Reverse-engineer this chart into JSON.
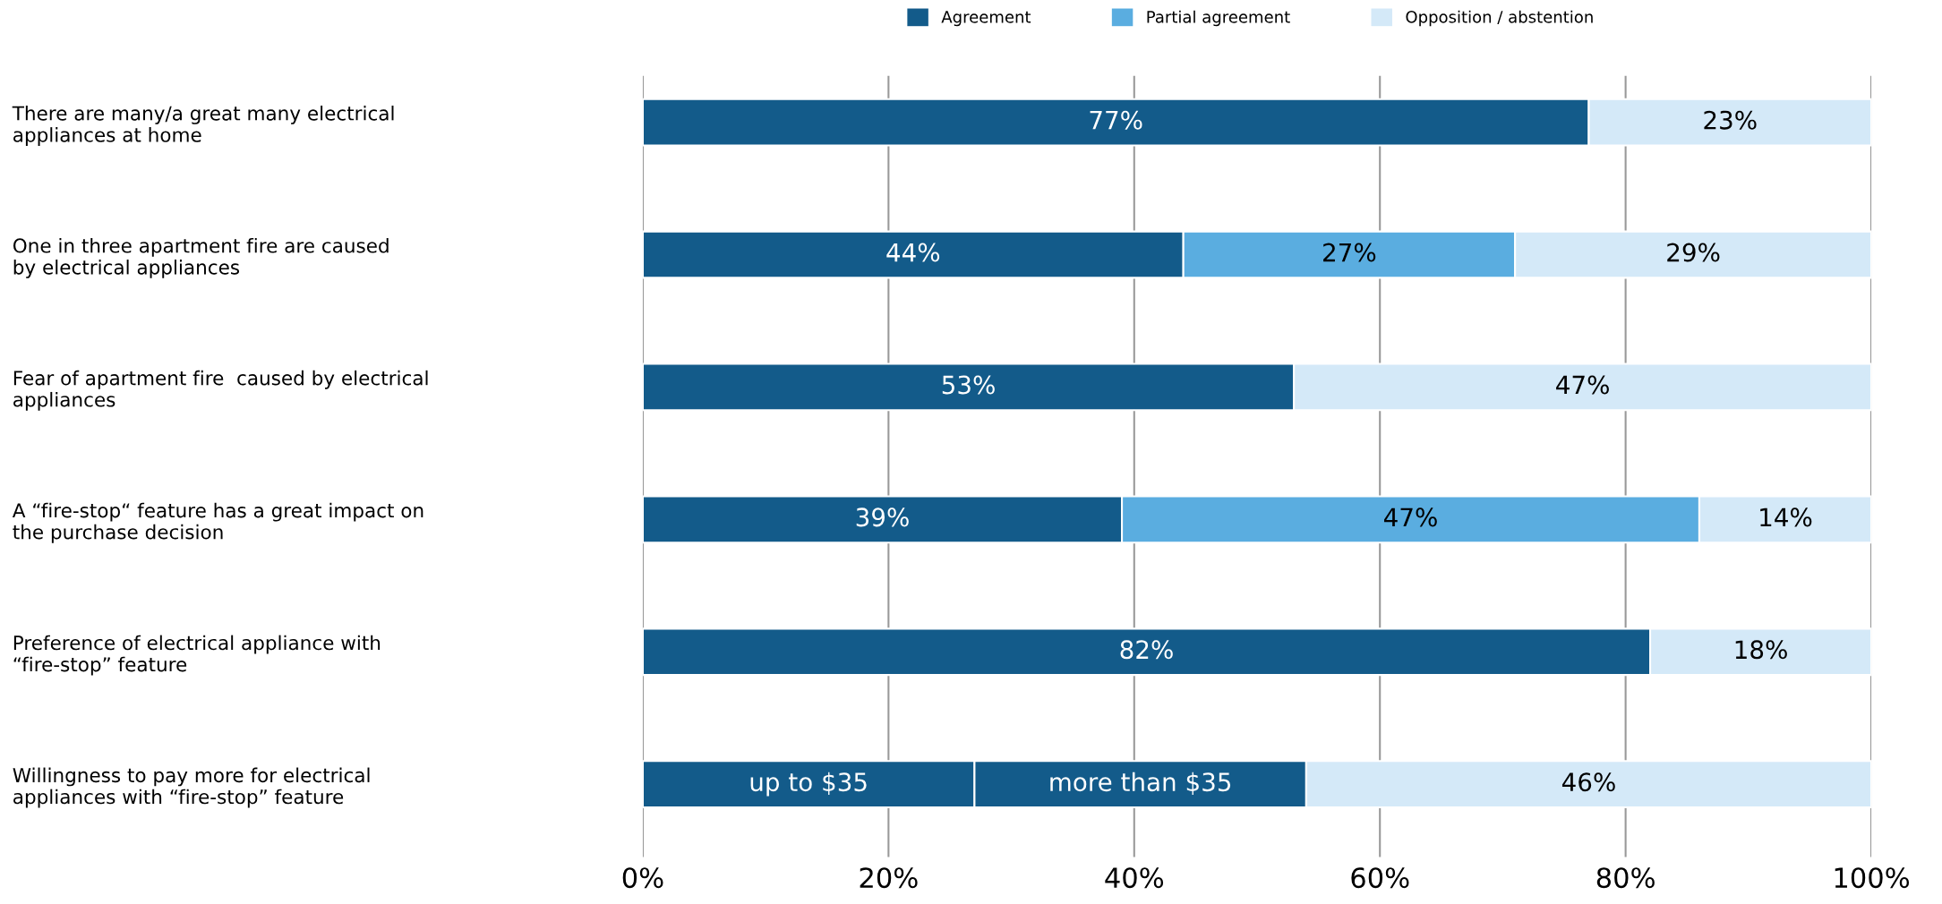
{
  "chart_data": {
    "type": "bar",
    "orientation": "horizontal",
    "stacked": true,
    "categories": [
      "There are many/a great many electrical\nappliances at home",
      "One in three apartment fire are caused\nby electrical appliances",
      "Fear of apartment fire  caused by electrical\nappliances",
      "A “fire-stop“ feature has a great impact on\nthe purchase decision",
      "Preference of electrical appliance with\n“fire-stop” feature",
      "Willingness to pay more for electrical\nappliances with “fire-stop” feature"
    ],
    "series": [
      {
        "name": "Agreement",
        "color": "#135b8a",
        "values": [
          77,
          44,
          53,
          39,
          82,
          27
        ],
        "value_labels": [
          "77%",
          "44%",
          "53%",
          "39%",
          "82%",
          "up to $35"
        ]
      },
      {
        "color": "#135b8a",
        "values": [
          null,
          null,
          null,
          null,
          null,
          27
        ],
        "value_labels": [
          null,
          null,
          null,
          null,
          null,
          "more than $35"
        ]
      },
      {
        "name": "Partial agreement",
        "color": "#5aade0",
        "values": [
          null,
          27,
          null,
          47,
          null,
          null
        ],
        "value_labels": [
          null,
          "27%",
          null,
          "47%",
          null,
          null
        ]
      },
      {
        "name": "Opposition / abstention",
        "color": "#d4e9f8",
        "values": [
          23,
          29,
          47,
          14,
          18,
          46
        ],
        "value_labels": [
          "23%",
          "29%",
          "47%",
          "14%",
          "18%",
          "46%"
        ]
      }
    ],
    "xlim": [
      0,
      100
    ],
    "xticks": [
      {
        "value": 0,
        "label": "0%"
      },
      {
        "value": 20,
        "label": "20%"
      },
      {
        "value": 40,
        "label": "40%"
      },
      {
        "value": 60,
        "label": "60%"
      },
      {
        "value": 80,
        "label": "80%"
      },
      {
        "value": 100,
        "label": "100%"
      }
    ],
    "grid": "x",
    "legend": "top"
  }
}
